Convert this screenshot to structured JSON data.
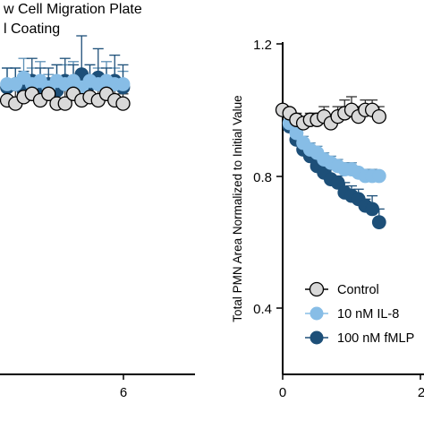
{
  "colors": {
    "control": "#d9d9d9",
    "il8": "#87bde6",
    "fmlp": "#1d4f78",
    "axis": "#000000"
  },
  "left_title_lines": [
    "w Cell Migration Plate",
    "l Coating"
  ],
  "chart_data": [
    {
      "panel": "left",
      "type": "scatter",
      "title": "w Cell Migration Plate\nl Coating",
      "xlabel": "",
      "ylabel": "",
      "x_ticks": [
        "6"
      ],
      "y_ticks": [],
      "grid": false,
      "series": [
        {
          "x": [
            0.0,
            0.25,
            0.5,
            0.75,
            1.0,
            1.25,
            1.5,
            1.75,
            2.0,
            2.25,
            2.5,
            2.75,
            3.0,
            3.25,
            3.5
          ],
          "values": [
            1.0,
            0.99,
            1.01,
            1.02,
            1.0,
            1.02,
            0.99,
            0.99,
            1.02,
            1.0,
            1.01,
            1.0,
            1.02,
            1.0,
            0.99
          ],
          "err": [
            0.05,
            0.04,
            0.05,
            0.04,
            0.03,
            0.04,
            0.03,
            0.04,
            0.03,
            0.05,
            0.04,
            0.04,
            0.03,
            0.04,
            0.03
          ]
        },
        {
          "x": [
            0.0,
            0.25,
            0.5,
            0.75,
            1.0,
            1.25,
            1.5,
            1.75,
            2.0,
            2.25,
            2.5,
            2.75,
            3.0,
            3.25,
            3.5
          ],
          "values": [
            1.05,
            1.05,
            1.07,
            1.05,
            1.06,
            1.04,
            1.06,
            1.05,
            1.06,
            1.04,
            1.06,
            1.05,
            1.06,
            1.05,
            1.05
          ],
          "err": [
            0.05,
            0.05,
            0.06,
            0.05,
            0.06,
            0.04,
            0.05,
            0.06,
            0.06,
            0.04,
            0.05,
            0.05,
            0.06,
            0.05,
            0.04
          ]
        },
        {
          "x": [
            0.0,
            0.25,
            0.5,
            0.75,
            1.0,
            1.25,
            1.5,
            1.75,
            2.0,
            2.25,
            2.5,
            2.75,
            3.0,
            3.25,
            3.5
          ],
          "values": [
            1.04,
            1.05,
            1.03,
            1.06,
            1.04,
            1.05,
            1.03,
            1.06,
            1.05,
            1.08,
            1.05,
            1.07,
            1.04,
            1.06,
            1.04
          ],
          "err": [
            0.06,
            0.05,
            0.06,
            0.07,
            0.06,
            0.05,
            0.08,
            0.07,
            0.06,
            0.12,
            0.06,
            0.09,
            0.06,
            0.08,
            0.07
          ]
        }
      ]
    },
    {
      "panel": "right",
      "type": "scatter",
      "title": "",
      "xlabel": "",
      "ylabel": "Total PMN Area Normalized to Initial Value",
      "ylim": [
        0.3,
        1.2
      ],
      "y_ticks": [
        "0.4",
        "0.8",
        "1.2"
      ],
      "x_ticks": [
        "0",
        "2"
      ],
      "grid": false,
      "legend": {
        "position": "bottom-left",
        "entries": [
          "Control",
          "10 nM IL-8",
          "100 nM fMLP"
        ]
      },
      "series": [
        {
          "name": "Control",
          "x": [
            0.0,
            0.1,
            0.2,
            0.3,
            0.4,
            0.5,
            0.6,
            0.7,
            0.8,
            0.9,
            1.0,
            1.1,
            1.2,
            1.3,
            1.4
          ],
          "values": [
            1.0,
            0.99,
            0.97,
            0.96,
            0.97,
            0.97,
            0.98,
            0.96,
            0.98,
            0.99,
            1.0,
            0.98,
            1.0,
            1.0,
            0.98
          ],
          "err": [
            0.0,
            0.0,
            0.02,
            0.02,
            0.02,
            0.02,
            0.03,
            0.02,
            0.03,
            0.04,
            0.04,
            0.03,
            0.03,
            0.03,
            0.03
          ]
        },
        {
          "name": "10 nM IL-8",
          "x": [
            0.0,
            0.1,
            0.2,
            0.3,
            0.4,
            0.5,
            0.6,
            0.7,
            0.8,
            0.9,
            1.0,
            1.1,
            1.2,
            1.3,
            1.4
          ],
          "values": [
            1.0,
            0.96,
            0.93,
            0.9,
            0.88,
            0.87,
            0.85,
            0.84,
            0.83,
            0.82,
            0.82,
            0.81,
            0.8,
            0.8,
            0.8
          ],
          "err": [
            0.0,
            0.01,
            0.01,
            0.02,
            0.02,
            0.02,
            0.02,
            0.02,
            0.02,
            0.02,
            0.02,
            0.01,
            0.02,
            0.02,
            0.01
          ]
        },
        {
          "name": "100 nM fMLP",
          "x": [
            0.0,
            0.1,
            0.2,
            0.3,
            0.4,
            0.5,
            0.6,
            0.7,
            0.8,
            0.9,
            1.0,
            1.1,
            1.2,
            1.3,
            1.4
          ],
          "values": [
            1.0,
            0.95,
            0.91,
            0.88,
            0.86,
            0.83,
            0.81,
            0.79,
            0.78,
            0.75,
            0.74,
            0.73,
            0.71,
            0.7,
            0.66
          ],
          "err": [
            0.0,
            0.01,
            0.01,
            0.02,
            0.02,
            0.02,
            0.03,
            0.03,
            0.02,
            0.03,
            0.03,
            0.03,
            0.02,
            0.04,
            0.04
          ]
        }
      ]
    }
  ]
}
